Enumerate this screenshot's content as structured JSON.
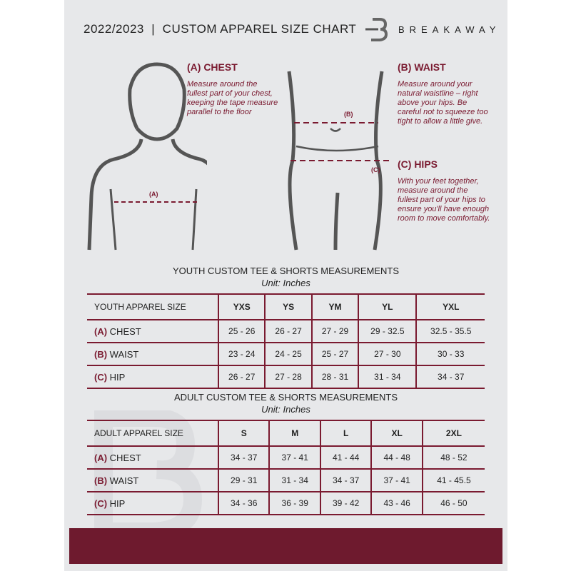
{
  "header": {
    "title": "2022/2023  |  CUSTOM APPAREL SIZE CHART",
    "brand": "BREAKAWAY"
  },
  "guides": {
    "chest": {
      "title": "(A) CHEST",
      "text": "Measure around the fullest part of your chest, keeping the tape measure parallel to the floor",
      "marker": "(A)"
    },
    "waist": {
      "title": "(B) WAIST",
      "text": "Measure around your natural waistline – right above your hips. Be careful not to squeeze too tight to allow a little give.",
      "marker": "(B)"
    },
    "hips": {
      "title": "(C) HIPS",
      "text": "With your feet together, measure around the fullest part of your hips to ensure you'll have enough room to move comfortably.",
      "marker": "(C)"
    }
  },
  "youth": {
    "title": "YOUTH CUSTOM TEE & SHORTS MEASUREMENTS",
    "unit": "Unit: Inches",
    "header": [
      "YOUTH APPAREL SIZE",
      "YXS",
      "YS",
      "YM",
      "YL",
      "YXL"
    ],
    "rows": [
      {
        "letter": "(A)",
        "label": "CHEST",
        "values": [
          "25 - 26",
          "26 - 27",
          "27 - 29",
          "29 - 32.5",
          "32.5 - 35.5"
        ]
      },
      {
        "letter": "(B)",
        "label": "WAIST",
        "values": [
          "23 - 24",
          "24 - 25",
          "25 - 27",
          "27 - 30",
          "30 - 33"
        ]
      },
      {
        "letter": "(C)",
        "label": "HIP",
        "values": [
          "26 - 27",
          "27 - 28",
          "28 - 31",
          "31 - 34",
          "34 - 37"
        ]
      }
    ]
  },
  "adult": {
    "title": "ADULT CUSTOM TEE & SHORTS MEASUREMENTS",
    "unit": "Unit: Inches",
    "header": [
      "ADULT APPAREL SIZE",
      "S",
      "M",
      "L",
      "XL",
      "2XL"
    ],
    "rows": [
      {
        "letter": "(A)",
        "label": "CHEST",
        "values": [
          "34 - 37",
          "37 - 41",
          "41 - 44",
          "44 - 48",
          "48 - 52"
        ]
      },
      {
        "letter": "(B)",
        "label": "WAIST",
        "values": [
          "29 - 31",
          "31 - 34",
          "34 - 37",
          "37 - 41",
          "41 - 45.5"
        ]
      },
      {
        "letter": "(C)",
        "label": "HIP",
        "values": [
          "34 - 36",
          "36 - 39",
          "39 - 42",
          "43 - 46",
          "46 - 50"
        ]
      }
    ]
  },
  "colors": {
    "accent": "#7a1a30",
    "footer": "#6e1a2e",
    "background": "#e7e8ea"
  }
}
